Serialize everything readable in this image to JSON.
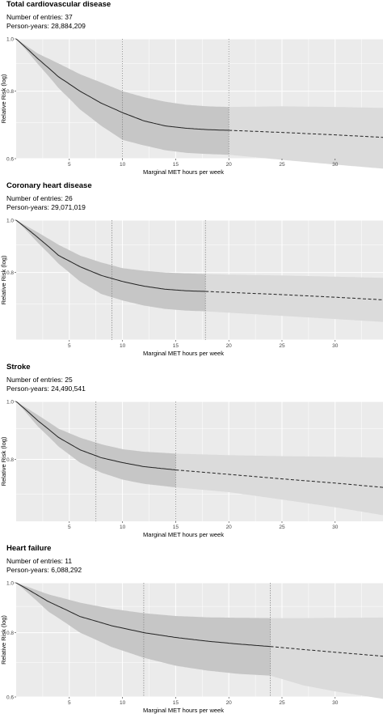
{
  "chart_data": [
    {
      "type": "line",
      "title": "Total cardiovascular disease",
      "entries_label": "Number of entries: 37",
      "person_years_label": "Person-years: 28,884,209",
      "xlabel": "Marginal MET hours per week",
      "ylabel": "Relative Risk (log)",
      "x_ticks": [
        "5",
        "10",
        "15",
        "20",
        "25",
        "30"
      ],
      "y_ticks": [
        "1.0",
        "0.8",
        "0.6"
      ],
      "xlim": [
        0,
        34.5
      ],
      "ylim": [
        0.6,
        1.0
      ],
      "y_scale": "log",
      "solid_until": 20,
      "vlines": [
        10,
        20
      ],
      "series": [
        {
          "x": [
            0,
            2,
            4,
            6,
            8,
            10,
            12,
            14,
            16,
            18,
            20,
            25,
            30,
            34.5
          ],
          "y": [
            1.0,
            0.92,
            0.85,
            0.8,
            0.76,
            0.73,
            0.705,
            0.69,
            0.683,
            0.679,
            0.677,
            0.671,
            0.664,
            0.657
          ],
          "lower": [
            1.0,
            0.9,
            0.81,
            0.74,
            0.69,
            0.65,
            0.635,
            0.622,
            0.615,
            0.612,
            0.61,
            0.597,
            0.585,
            0.575
          ],
          "upper": [
            1.0,
            0.94,
            0.9,
            0.86,
            0.83,
            0.8,
            0.78,
            0.765,
            0.755,
            0.75,
            0.748,
            0.75,
            0.748,
            0.745
          ]
        }
      ],
      "grid": true
    },
    {
      "type": "line",
      "title": "Coronary heart disease",
      "entries_label": "Number of entries: 26",
      "person_years_label": "Person-years: 29,071,019",
      "xlabel": "Marginal MET hours per week",
      "ylabel": "Relative Risk (log)",
      "x_ticks": [
        "5",
        "10",
        "15",
        "20",
        "25",
        "30"
      ],
      "y_ticks": [
        "1.0",
        "0.8"
      ],
      "xlim": [
        0,
        34.5
      ],
      "ylim": [
        0.6,
        1.0
      ],
      "y_scale": "log",
      "solid_until": 17.8,
      "vlines": [
        9,
        17.8
      ],
      "series": [
        {
          "x": [
            0,
            2,
            4,
            6,
            8,
            10,
            12,
            14,
            16,
            17.8,
            20,
            25,
            30,
            34.5
          ],
          "y": [
            1.0,
            0.93,
            0.86,
            0.82,
            0.79,
            0.77,
            0.755,
            0.745,
            0.74,
            0.738,
            0.735,
            0.728,
            0.72,
            0.712
          ],
          "lower": [
            1.0,
            0.91,
            0.83,
            0.77,
            0.73,
            0.71,
            0.695,
            0.685,
            0.68,
            0.678,
            0.674,
            0.665,
            0.656,
            0.648
          ],
          "upper": [
            1.0,
            0.95,
            0.9,
            0.86,
            0.835,
            0.815,
            0.806,
            0.8,
            0.797,
            0.795,
            0.793,
            0.79,
            0.786,
            0.782
          ]
        }
      ],
      "grid": true
    },
    {
      "type": "line",
      "title": "Stroke",
      "entries_label": "Number of entries: 25",
      "person_years_label": "Person-years: 24,490,541",
      "xlabel": "Marginal MET hours per week",
      "ylabel": "Relative Risk (log)",
      "x_ticks": [
        "5",
        "10",
        "15",
        "20",
        "25",
        "30"
      ],
      "y_ticks": [
        "1.0",
        "0.8"
      ],
      "xlim": [
        0,
        34.5
      ],
      "ylim": [
        0.63,
        1.0
      ],
      "y_scale": "log",
      "solid_until": 15,
      "vlines": [
        7.5,
        15
      ],
      "series": [
        {
          "x": [
            0,
            2,
            4,
            6,
            8,
            10,
            12,
            15,
            20,
            25,
            30,
            34.5
          ],
          "y": [
            1.0,
            0.93,
            0.87,
            0.83,
            0.805,
            0.79,
            0.778,
            0.768,
            0.755,
            0.742,
            0.73,
            0.718
          ],
          "lower": [
            1.0,
            0.91,
            0.84,
            0.79,
            0.76,
            0.74,
            0.728,
            0.718,
            0.705,
            0.685,
            0.665,
            0.645
          ],
          "upper": [
            1.0,
            0.95,
            0.9,
            0.87,
            0.848,
            0.832,
            0.824,
            0.818,
            0.813,
            0.81,
            0.808,
            0.805
          ]
        }
      ],
      "grid": true
    },
    {
      "type": "line",
      "title": "Heart failure",
      "entries_label": "Number of entries: 11",
      "person_years_label": "Person-years: 6,088,292",
      "xlabel": "Marginal MET hours per week",
      "ylabel": "Relative Risk (log)",
      "x_ticks": [
        "5",
        "10",
        "15",
        "20",
        "25",
        "30"
      ],
      "y_ticks": [
        "1.0",
        "0.8",
        "0.6"
      ],
      "xlim": [
        0,
        34.5
      ],
      "ylim": [
        0.6,
        1.0
      ],
      "y_scale": "log",
      "solid_until": 23.9,
      "vlines": [
        12,
        23.9
      ],
      "series": [
        {
          "x": [
            0,
            3,
            6,
            9,
            12,
            15,
            18,
            21,
            23.9,
            27,
            30,
            34.5
          ],
          "y": [
            1.0,
            0.92,
            0.86,
            0.825,
            0.8,
            0.783,
            0.77,
            0.76,
            0.752,
            0.742,
            0.733,
            0.72
          ],
          "lower": [
            1.0,
            0.88,
            0.8,
            0.75,
            0.715,
            0.69,
            0.675,
            0.665,
            0.66,
            0.632,
            0.615,
            0.595
          ],
          "upper": [
            1.0,
            0.95,
            0.915,
            0.89,
            0.873,
            0.862,
            0.857,
            0.855,
            0.854,
            0.854,
            0.855,
            0.856
          ]
        }
      ],
      "grid": true
    }
  ],
  "colors": {
    "panel_bg": "#ebebeb",
    "grid": "#ffffff",
    "band_fitted": "#c6c6c6",
    "band_extrapolated": "#dbdbdb",
    "line": "#222222",
    "vline": "#8c8c8c"
  }
}
